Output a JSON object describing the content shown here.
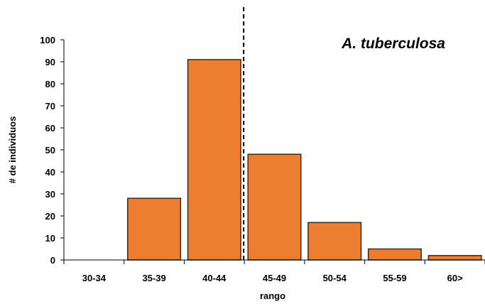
{
  "chart_data": {
    "type": "bar",
    "title": "A. tuberculosa",
    "xlabel": "rango",
    "ylabel": "# de individuos",
    "categories": [
      "30-34",
      "35-39",
      "40-44",
      "45-49",
      "50-54",
      "55-59",
      "60>"
    ],
    "values": [
      0,
      28,
      91,
      48,
      17,
      5,
      2
    ],
    "ylim": [
      0,
      100
    ],
    "yticks": [
      0,
      10,
      20,
      30,
      40,
      50,
      60,
      70,
      80,
      90,
      100
    ],
    "grid": false,
    "legend": "none",
    "bar_color": "#ED7D31",
    "bar_edge_color": "#3A2A1A",
    "reference_line": {
      "style": "dashed",
      "position": "boundary between 40-44 and 45-49"
    }
  }
}
